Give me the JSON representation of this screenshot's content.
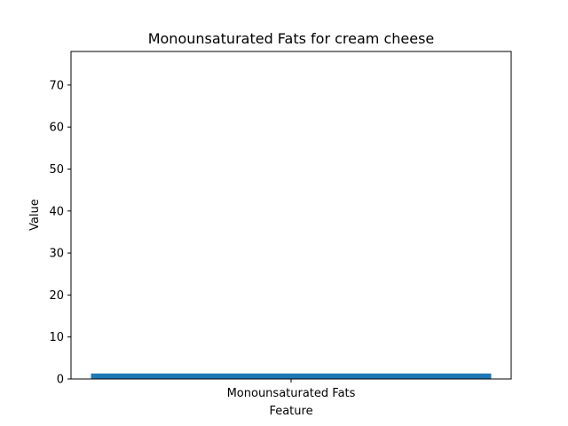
{
  "chart_data": {
    "type": "bar",
    "title": "Monounsaturated Fats for cream cheese",
    "xlabel": "Feature",
    "ylabel": "Value",
    "categories": [
      "Monounsaturated Fats"
    ],
    "values": [
      1.3
    ],
    "ylim": [
      0,
      78
    ],
    "yticks": [
      0,
      10,
      20,
      30,
      40,
      50,
      60,
      70
    ],
    "grid": false,
    "bar_color": "#1f77b4"
  }
}
